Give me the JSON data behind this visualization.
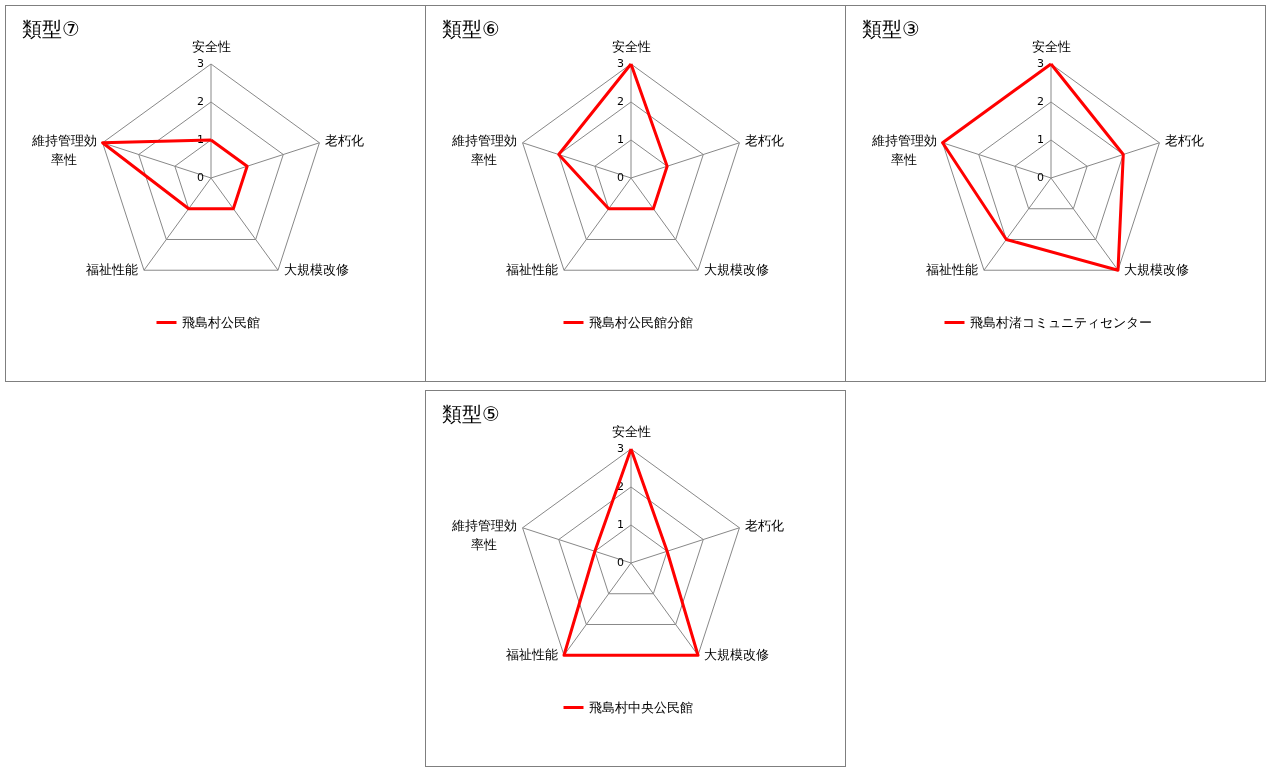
{
  "chart_data": [
    {
      "type": "radar",
      "title": "類型⑦",
      "categories": [
        "安全性",
        "老朽化",
        "大規模改修",
        "福祉性能",
        "維持管理効率性"
      ],
      "series": [
        {
          "name": "飛島村公民館",
          "color": "#ff0000",
          "values": [
            1,
            1,
            1,
            1,
            3
          ]
        }
      ],
      "ylim": [
        0,
        3
      ],
      "yticks": [
        0,
        1,
        2,
        3
      ],
      "grid": true,
      "legend": "bottom"
    },
    {
      "type": "radar",
      "title": "類型⑥",
      "categories": [
        "安全性",
        "老朽化",
        "大規模改修",
        "福祉性能",
        "維持管理効率性"
      ],
      "series": [
        {
          "name": "飛島村公民館分館",
          "color": "#ff0000",
          "values": [
            3,
            1,
            1,
            1,
            2
          ]
        }
      ],
      "ylim": [
        0,
        3
      ],
      "yticks": [
        0,
        1,
        2,
        3
      ],
      "grid": true,
      "legend": "bottom"
    },
    {
      "type": "radar",
      "title": "類型③",
      "categories": [
        "安全性",
        "老朽化",
        "大規模改修",
        "福祉性能",
        "維持管理効率性"
      ],
      "series": [
        {
          "name": "飛島村渚コミュニティセンター",
          "color": "#ff0000",
          "values": [
            3,
            2,
            3,
            2,
            3
          ]
        }
      ],
      "ylim": [
        0,
        3
      ],
      "yticks": [
        0,
        1,
        2,
        3
      ],
      "grid": true,
      "legend": "bottom"
    },
    {
      "type": "radar",
      "title": "類型⑤",
      "categories": [
        "安全性",
        "老朽化",
        "大規模改修",
        "福祉性能",
        "維持管理効率性"
      ],
      "series": [
        {
          "name": "飛島村中央公民館",
          "color": "#ff0000",
          "values": [
            3,
            1,
            3,
            3,
            1
          ]
        }
      ],
      "ylim": [
        0,
        3
      ],
      "yticks": [
        0,
        1,
        2,
        3
      ],
      "grid": true,
      "legend": "bottom"
    }
  ]
}
